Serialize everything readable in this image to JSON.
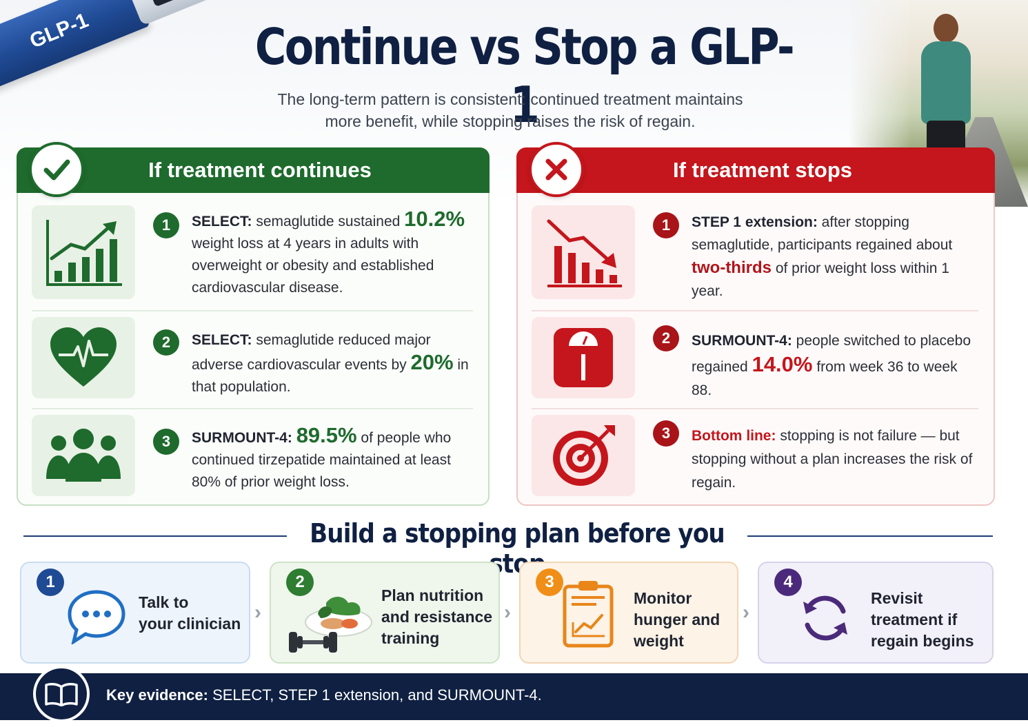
{
  "header": {
    "title": "Continue vs Stop a GLP-1",
    "subtitle": "The long-term pattern is consistent: continued treatment maintains more benefit, while stopping raises the risk of regain.",
    "pen_label": "GLP-1"
  },
  "continues": {
    "title": "If treatment continues",
    "badge_icon": "checkmark-icon",
    "items": [
      {
        "num": "1",
        "icon": "rising-bar-chart-icon",
        "label": "SELECT:",
        "text_a": " semaglutide sustained ",
        "highlight": "10.2%",
        "text_b": " weight loss at 4 years in adults with overweight or obesity and established cardiovascular disease."
      },
      {
        "num": "2",
        "icon": "heart-pulse-icon",
        "label": "SELECT:",
        "text_a": " semaglutide reduced major adverse cardiovascular events by ",
        "highlight": "20%",
        "text_b": " in that population."
      },
      {
        "num": "3",
        "icon": "people-group-icon",
        "label": "SURMOUNT-4:",
        "text_a": " ",
        "highlight": "89.5%",
        "text_b": " of people who continued tirzepatide maintained at least 80% of prior weight loss."
      }
    ]
  },
  "stops": {
    "title": "If treatment stops",
    "badge_icon": "x-mark-icon",
    "items": [
      {
        "num": "1",
        "icon": "falling-bar-chart-icon",
        "label": "STEP 1 extension:",
        "text_a": " after stopping semaglutide, participants regained about ",
        "highlight": "two-thirds",
        "text_b": " of prior weight loss within 1 year."
      },
      {
        "num": "2",
        "icon": "bathroom-scale-icon",
        "label": "SURMOUNT-4:",
        "text_a": " people switched to placebo regained ",
        "highlight": "14.0%",
        "text_b": " from week 36 to week 88."
      },
      {
        "num": "3",
        "icon": "target-arrow-icon",
        "label": "Bottom line:",
        "text_a": " stopping is not failure — but stopping without a plan increases the risk of regain.",
        "highlight": "",
        "text_b": ""
      }
    ]
  },
  "plan": {
    "title": "Build a stopping plan before you stop",
    "steps": [
      {
        "num": "1",
        "icon": "speech-bubble-icon",
        "label": "Talk to\nyour clinician"
      },
      {
        "num": "2",
        "icon": "dumbbell-salad-icon",
        "label": "Plan nutrition\nand resistance\ntraining"
      },
      {
        "num": "3",
        "icon": "clipboard-chart-icon",
        "label": "Monitor\nhunger and\nweight"
      },
      {
        "num": "4",
        "icon": "refresh-cycle-icon",
        "label": "Revisit\ntreatment if\nregain begins"
      }
    ]
  },
  "footer": {
    "icon": "open-book-icon",
    "label": "Key evidence:",
    "text": " SELECT, STEP 1 extension, and SURMOUNT-4."
  },
  "colors": {
    "navy": "#0f2042",
    "green": "#1e6b2d",
    "red": "#c4161c",
    "orange": "#ef8f18",
    "purple": "#4b2a7b",
    "blue": "#1f4a94"
  }
}
